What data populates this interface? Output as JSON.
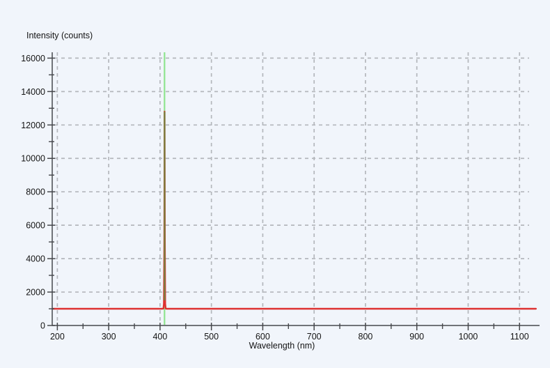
{
  "window": {
    "background_color": "#f1f5fb"
  },
  "chart_data": {
    "type": "line",
    "title": "",
    "xlabel": "Wavelength (nm)",
    "ylabel": "Intensity (counts)",
    "xlim": [
      190,
      1139
    ],
    "ylim": [
      0,
      16350
    ],
    "x_ticks": [
      200,
      300,
      400,
      500,
      600,
      700,
      800,
      900,
      1000,
      1100
    ],
    "x_minor_ticks": [
      250,
      350,
      450,
      550,
      650,
      750,
      850,
      950,
      1050
    ],
    "y_ticks": [
      0,
      2000,
      4000,
      6000,
      8000,
      10000,
      12000,
      14000,
      16000
    ],
    "y_minor_ticks": [
      1000,
      3000,
      5000,
      7000,
      9000,
      11000,
      13000,
      15000
    ],
    "grid": "dashed gridlines at every major tick, both axes",
    "legend": "none",
    "baseline_counts": 1000,
    "peak": {
      "wavelength_nm": 408.8,
      "intensity_counts": 12800
    },
    "marker_line": {
      "wavelength_nm": 408.7,
      "color": "#8fe48f"
    },
    "series": [
      {
        "name": "spectrum",
        "color": "#de3131",
        "points": [
          [
            191,
            1000
          ],
          [
            250,
            1000
          ],
          [
            300,
            1000
          ],
          [
            350,
            1000
          ],
          [
            404,
            1000
          ],
          [
            406.5,
            1010
          ],
          [
            407.5,
            1300
          ],
          [
            408.3,
            5000
          ],
          [
            408.8,
            12800
          ],
          [
            409.3,
            5000
          ],
          [
            410.1,
            1300
          ],
          [
            411,
            1010
          ],
          [
            413,
            1000
          ],
          [
            500,
            1000
          ],
          [
            600,
            1000
          ],
          [
            700,
            1000
          ],
          [
            800,
            1000
          ],
          [
            900,
            1000
          ],
          [
            1000,
            1000
          ],
          [
            1100,
            1000
          ],
          [
            1132,
            1000
          ]
        ]
      }
    ],
    "overlap_color": "#77813f",
    "colors": {
      "grid": "#b4b7bc",
      "axis": "#46484c",
      "text": "#141414",
      "trace": "#de3131",
      "marker": "#8fe48f"
    }
  }
}
